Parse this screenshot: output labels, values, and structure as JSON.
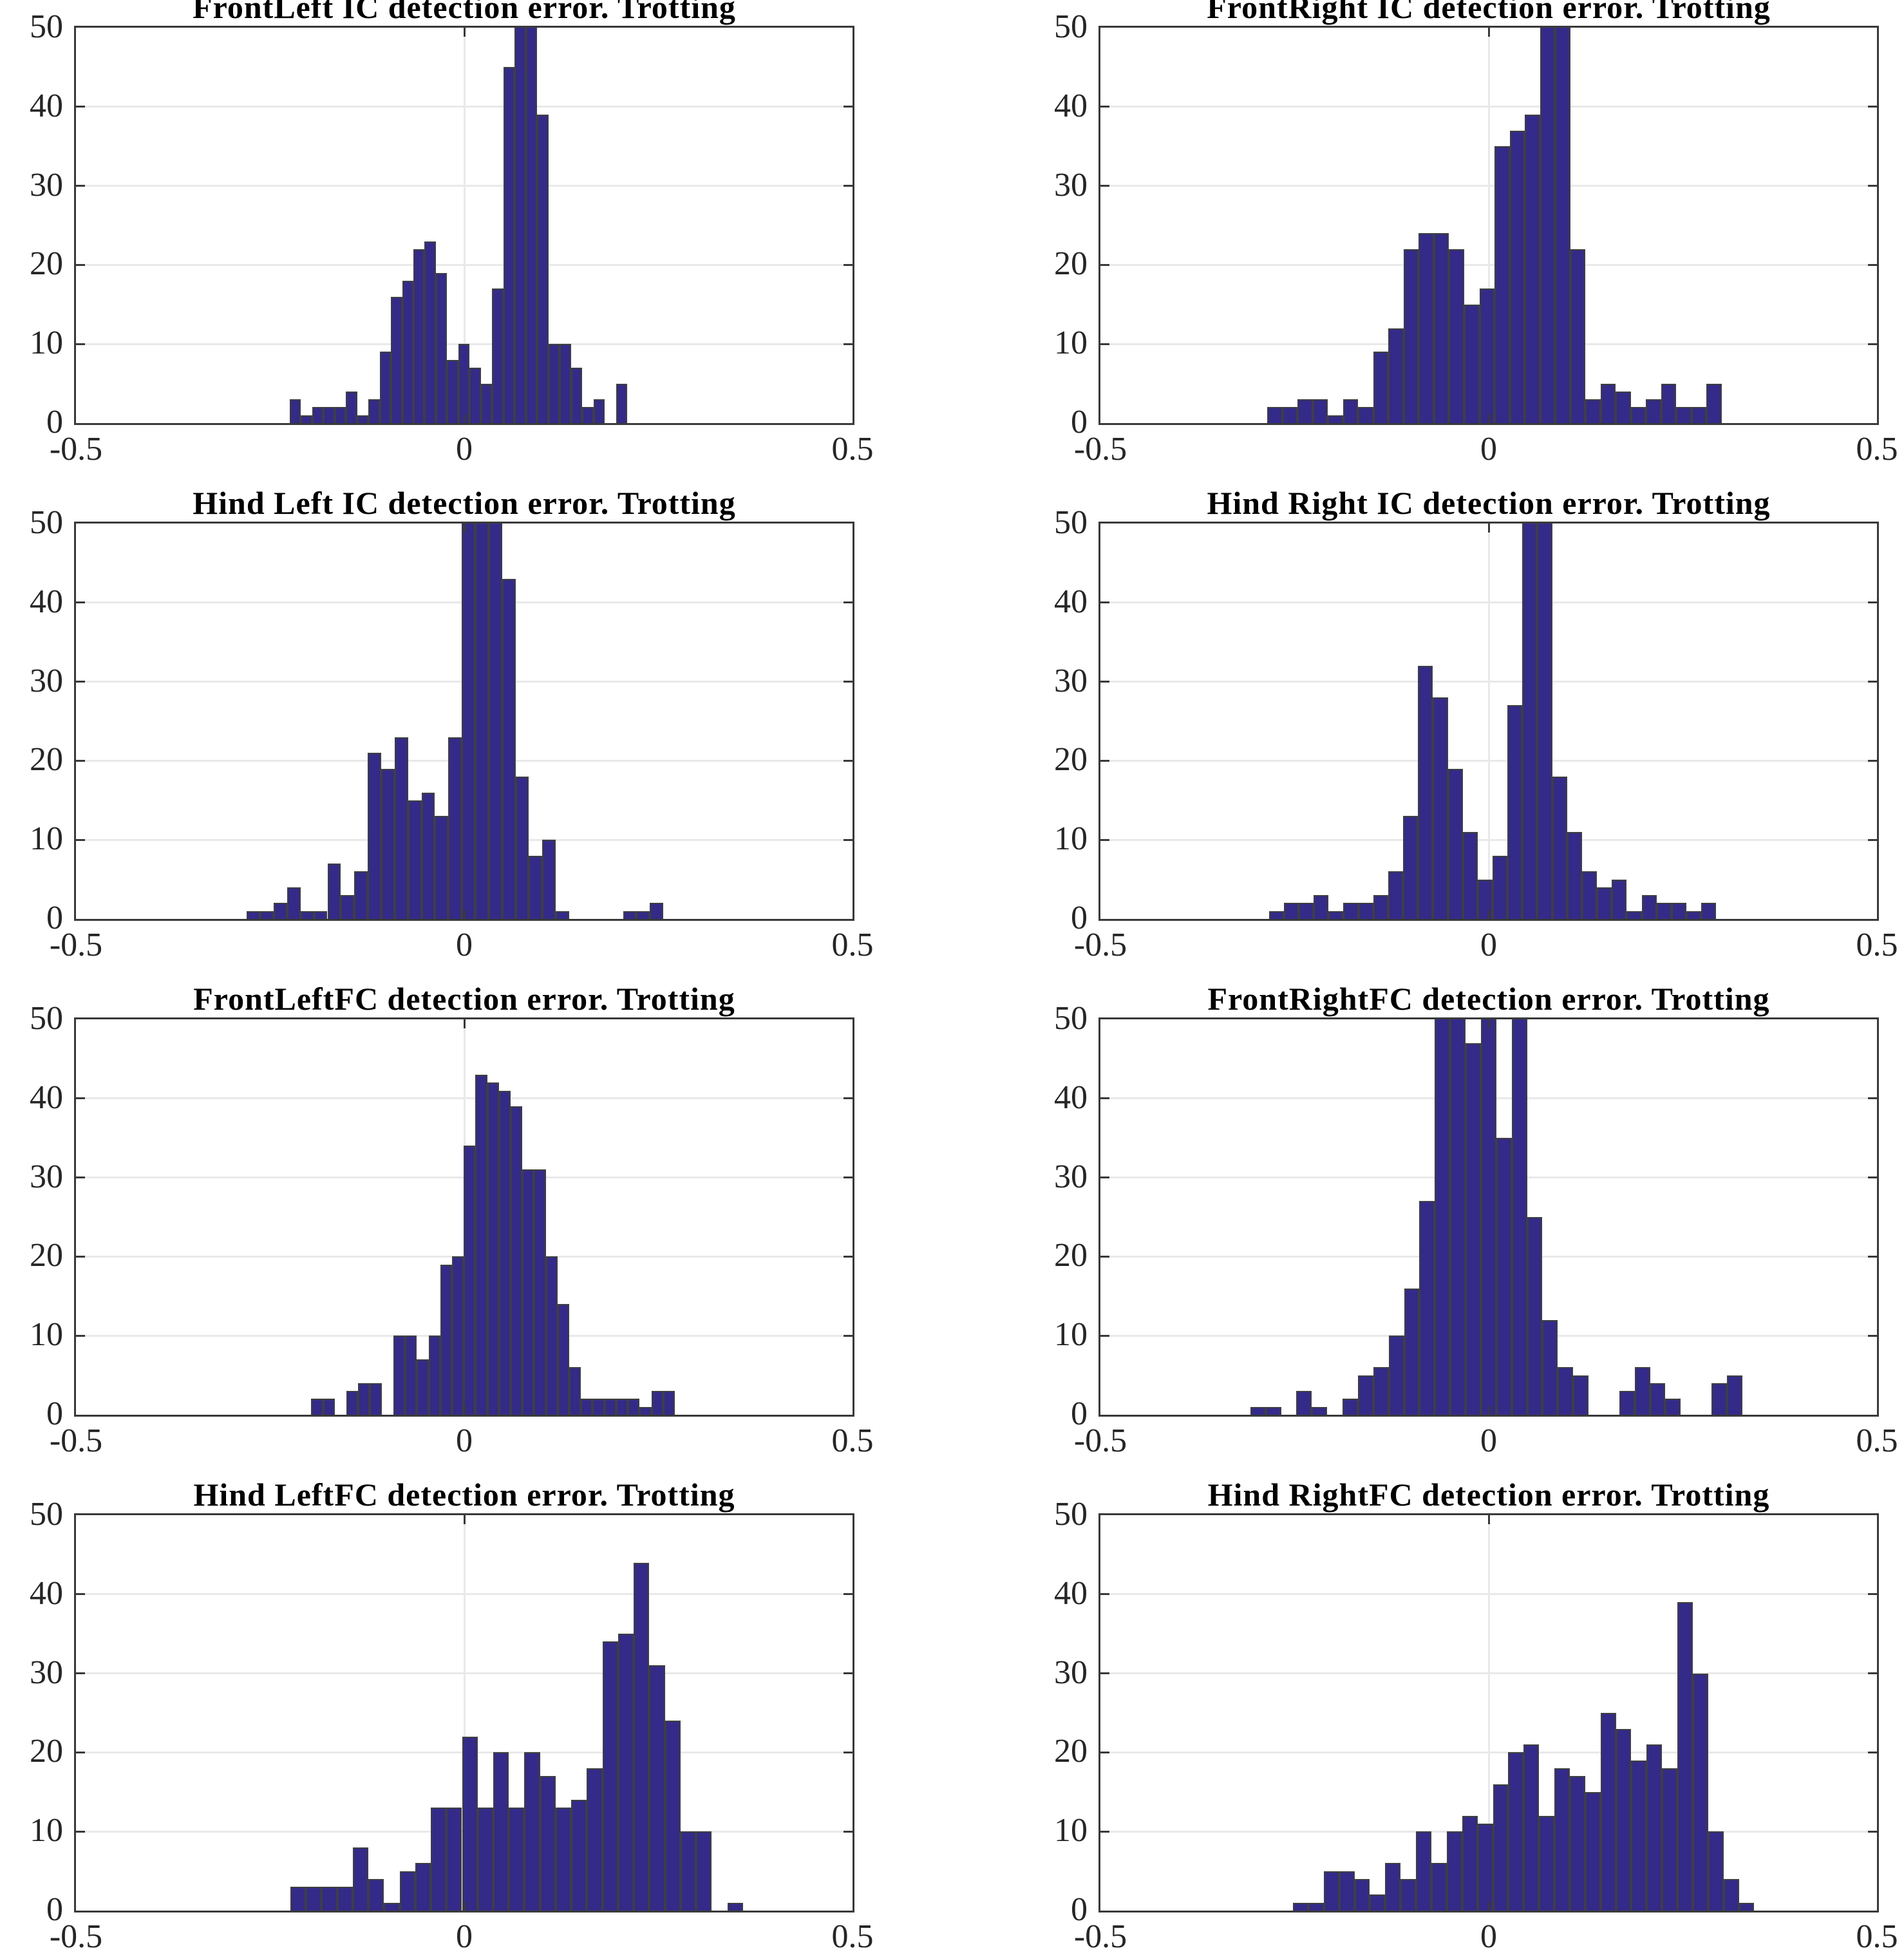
{
  "page": {
    "background": "#ffffff"
  },
  "colors": {
    "bar_fill": "#332a8a",
    "bar_edge": "#3f3f3f",
    "grid": "#e9e9e9",
    "axis": "#3a3a3a",
    "tick_label": "#262626",
    "title": "#000000"
  },
  "axes": {
    "xlim": [
      -0.5,
      0.5
    ],
    "ylim": [
      0,
      50
    ],
    "yticks": [
      0,
      10,
      20,
      30,
      40,
      50
    ],
    "xticks": [
      -0.5,
      0,
      0.5
    ],
    "xtick_labels": [
      "-0.5",
      "0",
      "0.5"
    ],
    "grid": "on",
    "legend": "none"
  },
  "chart_data": [
    {
      "type": "bar",
      "id": "frontleft-ic",
      "title": "FrontLeft IC detection error. Trotting",
      "xlabel": "",
      "ylabel": "",
      "xlim": [
        -0.5,
        0.5
      ],
      "ylim": [
        0,
        50
      ],
      "bin_start": -0.225,
      "bin_width": 0.0145,
      "counts": [
        3,
        1,
        2,
        2,
        2,
        4,
        1,
        3,
        9,
        16,
        18,
        22,
        23,
        19,
        8,
        10,
        7,
        5,
        17,
        45,
        50,
        50,
        39,
        10,
        10,
        7,
        2,
        3,
        0,
        5
      ],
      "peak_clipped": true
    },
    {
      "type": "bar",
      "id": "frontright-ic",
      "title": "FrontRight IC detection error. Trotting",
      "xlabel": "",
      "ylabel": "",
      "xlim": [
        -0.5,
        0.5
      ],
      "ylim": [
        0,
        50
      ],
      "bin_start": -0.285,
      "bin_width": 0.0195,
      "counts": [
        2,
        2,
        3,
        3,
        1,
        3,
        2,
        9,
        12,
        22,
        24,
        24,
        22,
        15,
        17,
        35,
        37,
        39,
        50,
        50,
        22,
        3,
        5,
        4,
        2,
        3,
        5,
        2,
        2,
        5
      ],
      "peak_clipped": true
    },
    {
      "type": "bar",
      "id": "hindleft-ic",
      "title": "Hind Left IC detection error. Trotting",
      "xlabel": "",
      "ylabel": "",
      "xlim": [
        -0.5,
        0.5
      ],
      "ylim": [
        0,
        50
      ],
      "bin_start": -0.28,
      "bin_width": 0.0173,
      "counts": [
        1,
        1,
        2,
        4,
        1,
        1,
        7,
        3,
        6,
        21,
        19,
        23,
        15,
        16,
        13,
        23,
        50,
        50,
        50,
        43,
        18,
        8,
        10,
        1,
        0,
        0,
        0,
        0,
        1,
        1,
        2
      ],
      "peak_clipped": true
    },
    {
      "type": "bar",
      "id": "hindright-ic",
      "title": "Hind Right IC detection error. Trotting",
      "xlabel": "",
      "ylabel": "",
      "xlim": [
        -0.5,
        0.5
      ],
      "ylim": [
        0,
        50
      ],
      "bin_start": -0.283,
      "bin_width": 0.0192,
      "counts": [
        1,
        2,
        2,
        3,
        1,
        2,
        2,
        3,
        6,
        13,
        32,
        28,
        19,
        11,
        5,
        8,
        27,
        50,
        50,
        18,
        11,
        6,
        4,
        5,
        1,
        3,
        2,
        2,
        1,
        2
      ],
      "peak_clipped": true
    },
    {
      "type": "bar",
      "id": "frontleft-fc",
      "title": "FrontLeftFC detection error. Trotting",
      "xlabel": "",
      "ylabel": "",
      "xlim": [
        -0.5,
        0.5
      ],
      "ylim": [
        0,
        50
      ],
      "bin_start": -0.197,
      "bin_width": 0.0151,
      "counts": [
        2,
        2,
        0,
        3,
        4,
        4,
        0,
        10,
        10,
        7,
        10,
        19,
        20,
        34,
        43,
        42,
        41,
        39,
        31,
        31,
        20,
        14,
        6,
        2,
        2,
        2,
        2,
        2,
        1,
        3,
        3
      ],
      "peak_clipped": false
    },
    {
      "type": "bar",
      "id": "frontright-fc",
      "title": "FrontRightFC detection error. Trotting",
      "xlabel": "",
      "ylabel": "",
      "xlim": [
        -0.5,
        0.5
      ],
      "ylim": [
        0,
        50
      ],
      "bin_start": -0.307,
      "bin_width": 0.0198,
      "counts": [
        1,
        1,
        0,
        3,
        1,
        0,
        2,
        5,
        6,
        10,
        16,
        27,
        50,
        50,
        47,
        50,
        35,
        50,
        25,
        12,
        6,
        5,
        0,
        0,
        3,
        6,
        4,
        2,
        0,
        0,
        4,
        5
      ],
      "peak_clipped": true
    },
    {
      "type": "bar",
      "id": "hindleft-fc",
      "title": "Hind LeftFC detection error. Trotting",
      "xlabel": "",
      "ylabel": "",
      "xlim": [
        -0.5,
        0.5
      ],
      "ylim": [
        0,
        50
      ],
      "bin_start": -0.224,
      "bin_width": 0.0201,
      "counts": [
        3,
        3,
        3,
        3,
        8,
        4,
        1,
        5,
        6,
        13,
        13,
        22,
        13,
        20,
        13,
        20,
        17,
        13,
        14,
        18,
        34,
        35,
        44,
        31,
        24,
        10,
        10,
        0,
        1
      ],
      "peak_clipped": false
    },
    {
      "type": "bar",
      "id": "hindright-fc",
      "title": "Hind RightFC detection error. Trotting",
      "xlabel": "",
      "ylabel": "",
      "xlim": [
        -0.5,
        0.5
      ],
      "ylim": [
        0,
        50
      ],
      "bin_start": -0.252,
      "bin_width": 0.0198,
      "counts": [
        1,
        1,
        5,
        5,
        4,
        2,
        6,
        4,
        10,
        6,
        10,
        12,
        11,
        16,
        20,
        21,
        12,
        18,
        17,
        15,
        25,
        23,
        19,
        21,
        18,
        39,
        30,
        10,
        4,
        1
      ],
      "peak_clipped": false
    }
  ]
}
